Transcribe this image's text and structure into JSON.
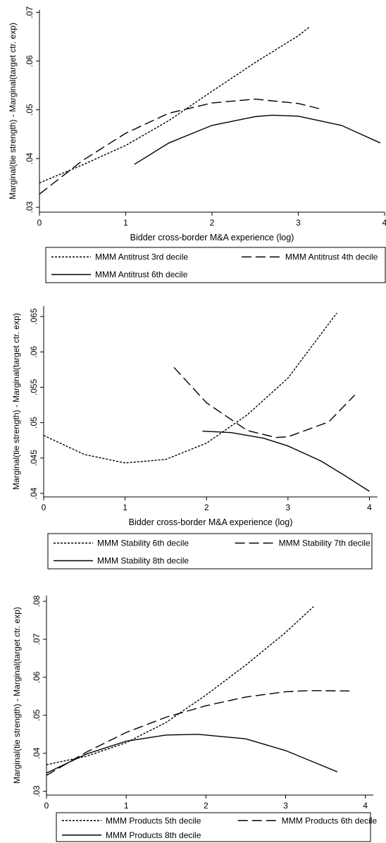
{
  "chart_data": [
    {
      "type": "line",
      "xlabel": "Bidder cross-border M&A experience (log)",
      "ylabel": "Marginal(tie strength) - Marginal(target ctr. exp)",
      "xlim": [
        0,
        4
      ],
      "ylim": [
        0.029,
        0.0705
      ],
      "xticks": [
        0,
        1,
        2,
        3,
        4
      ],
      "xtick_labels": [
        "0",
        "1",
        "2",
        "3",
        "4"
      ],
      "yticks": [
        0.03,
        0.04,
        0.05,
        0.06,
        0.07
      ],
      "ytick_labels": [
        ".03",
        ".04",
        ".05",
        ".06",
        ".07"
      ],
      "grid": false,
      "legend_position": "bottom",
      "series": [
        {
          "name": "MMM Antitrust 3rd decile",
          "style": "dotted",
          "x": [
            0,
            0.5,
            1.0,
            1.5,
            2.0,
            2.5,
            3.0,
            3.13
          ],
          "y": [
            0.035,
            0.0387,
            0.0427,
            0.0478,
            0.0538,
            0.0597,
            0.0652,
            0.067
          ]
        },
        {
          "name": "MMM Antitrust 4th decile",
          "style": "dashed",
          "x": [
            0,
            0.5,
            1.0,
            1.5,
            2.0,
            2.5,
            3.0,
            3.25
          ],
          "y": [
            0.0327,
            0.0396,
            0.0452,
            0.0493,
            0.0514,
            0.0522,
            0.0513,
            0.0502
          ]
        },
        {
          "name": "MMM Antitrust 6th decile",
          "style": "solid",
          "x": [
            1.1,
            1.5,
            2.0,
            2.5,
            2.7,
            3.0,
            3.5,
            3.95
          ],
          "y": [
            0.0388,
            0.0432,
            0.0468,
            0.0486,
            0.0489,
            0.0487,
            0.0468,
            0.0432
          ]
        }
      ]
    },
    {
      "type": "line",
      "xlabel": "Bidder cross-border M&A experience (log)",
      "ylabel": "Marginal(tie strength) - Marginal(target ctr. exp)",
      "xlim": [
        0,
        4.1
      ],
      "ylim": [
        0.0395,
        0.0665
      ],
      "xticks": [
        0,
        1,
        2,
        3,
        4
      ],
      "xtick_labels": [
        "0",
        "1",
        "2",
        "3",
        "4"
      ],
      "yticks": [
        0.04,
        0.045,
        0.05,
        0.055,
        0.06,
        0.065
      ],
      "ytick_labels": [
        ".04",
        ".045",
        ".05",
        ".055",
        ".06",
        ".065"
      ],
      "grid": false,
      "legend_position": "bottom",
      "series": [
        {
          "name": "MMM Stability 6th decile",
          "style": "dotted",
          "x": [
            0,
            0.5,
            1.0,
            1.5,
            2.0,
            2.5,
            3.0,
            3.6
          ],
          "y": [
            0.0482,
            0.0455,
            0.0443,
            0.0448,
            0.0471,
            0.0511,
            0.0563,
            0.0655
          ]
        },
        {
          "name": "MMM Stability 7th decile",
          "style": "dashed",
          "x": [
            1.6,
            2.0,
            2.5,
            2.85,
            3.0,
            3.5,
            3.82
          ],
          "y": [
            0.0578,
            0.0528,
            0.0489,
            0.0479,
            0.048,
            0.0501,
            0.0539
          ]
        },
        {
          "name": "MMM Stability 8th decile",
          "style": "solid",
          "x": [
            1.95,
            2.3,
            2.7,
            3.0,
            3.4,
            3.7,
            4.0
          ],
          "y": [
            0.0488,
            0.0486,
            0.0478,
            0.0467,
            0.0446,
            0.0425,
            0.0403
          ]
        }
      ]
    },
    {
      "type": "line",
      "xlabel": "Bidder cross-border M&A experience (log)",
      "ylabel": "Marginal(tie strength) - Marginal(target ctr. exp)",
      "xlim": [
        0,
        4.1
      ],
      "ylim": [
        0.029,
        0.0815
      ],
      "xticks": [
        0,
        1,
        2,
        3,
        4
      ],
      "xtick_labels": [
        "0",
        "1",
        "2",
        "3",
        "4"
      ],
      "yticks": [
        0.03,
        0.04,
        0.05,
        0.06,
        0.07,
        0.08
      ],
      "ytick_labels": [
        ".03",
        ".04",
        ".05",
        ".06",
        ".07",
        ".08"
      ],
      "grid": false,
      "legend_position": "bottom",
      "series": [
        {
          "name": "MMM Products 5th decile",
          "style": "dotted",
          "x": [
            0,
            0.5,
            1.0,
            1.5,
            2.0,
            2.5,
            3.0,
            3.35
          ],
          "y": [
            0.037,
            0.0392,
            0.0428,
            0.0481,
            0.0553,
            0.0632,
            0.0718,
            0.0786
          ]
        },
        {
          "name": "MMM Products 6th decile",
          "style": "dashed",
          "x": [
            0,
            0.5,
            1.0,
            1.5,
            2.0,
            2.5,
            3.0,
            3.3,
            3.8
          ],
          "y": [
            0.0342,
            0.0403,
            0.0455,
            0.0495,
            0.0525,
            0.0548,
            0.0562,
            0.0565,
            0.0564
          ]
        },
        {
          "name": "MMM Products 8th decile",
          "style": "solid",
          "x": [
            0,
            0.5,
            1.0,
            1.5,
            1.9,
            2.5,
            3.0,
            3.65
          ],
          "y": [
            0.0348,
            0.0398,
            0.0432,
            0.0448,
            0.045,
            0.0438,
            0.0407,
            0.0351
          ]
        }
      ]
    }
  ]
}
